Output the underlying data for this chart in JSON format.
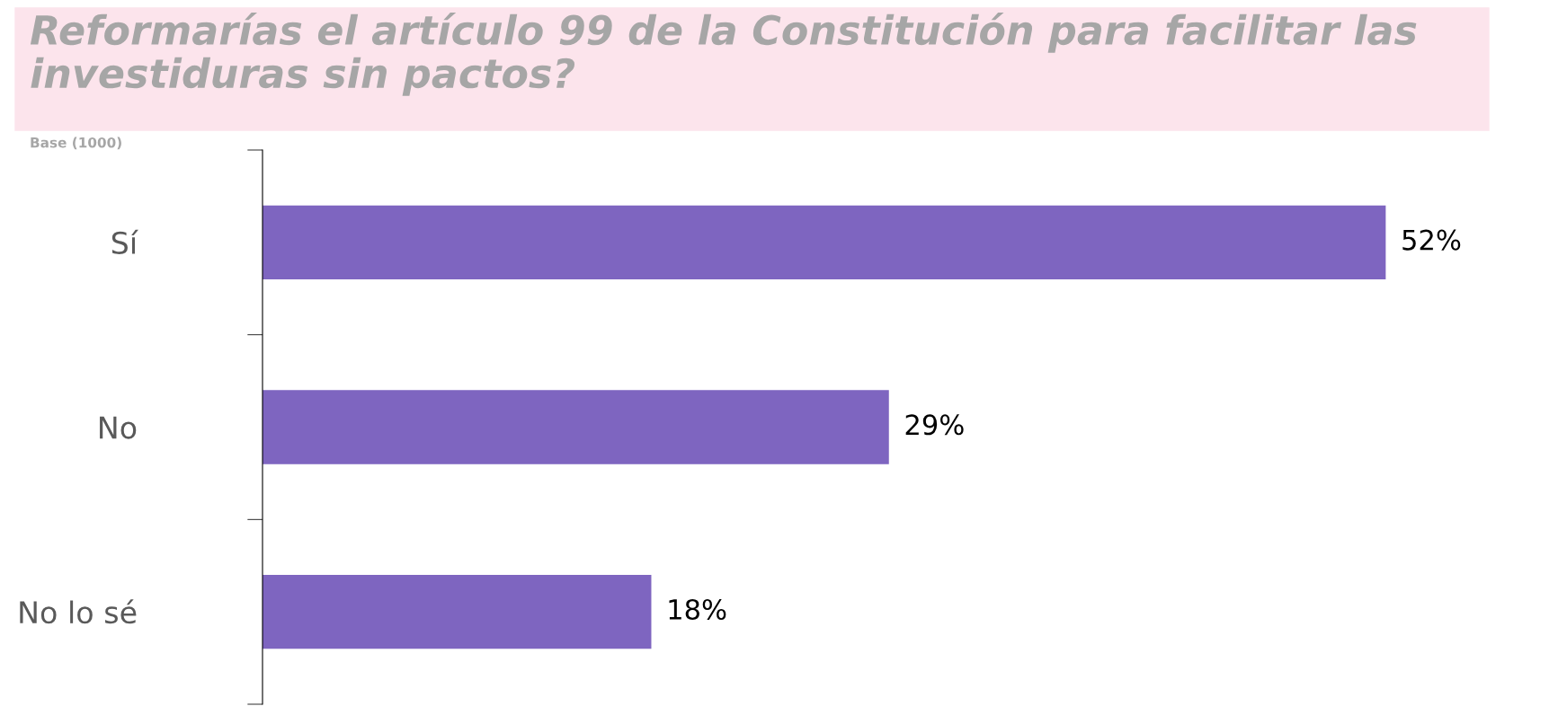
{
  "chart_data": {
    "type": "bar",
    "orientation": "horizontal",
    "title": "Reformarías el artículo 99 de la Constitución para facilitar las investiduras sin pactos?",
    "annotations": [
      "Base (1000)"
    ],
    "categories": [
      "Sí",
      "No",
      "No lo sé"
    ],
    "values": [
      52,
      29,
      18
    ],
    "color": "#7e65c0",
    "value_labels": [
      "52%",
      "29%",
      "18%"
    ],
    "grid": false,
    "legend": false
  }
}
